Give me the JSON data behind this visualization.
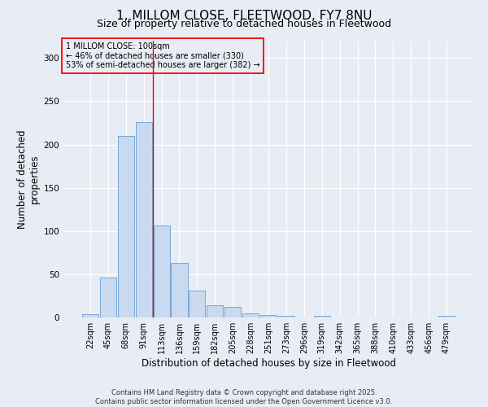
{
  "title": "1, MILLOM CLOSE, FLEETWOOD, FY7 8NU",
  "subtitle": "Size of property relative to detached houses in Fleetwood",
  "xlabel": "Distribution of detached houses by size in Fleetwood",
  "ylabel": "Number of detached properties",
  "bar_color": "#c8d9f0",
  "bar_edge_color": "#6a9fd0",
  "bin_labels": [
    "22sqm",
    "45sqm",
    "68sqm",
    "91sqm",
    "113sqm",
    "136sqm",
    "159sqm",
    "182sqm",
    "205sqm",
    "228sqm",
    "251sqm",
    "273sqm",
    "296sqm",
    "319sqm",
    "342sqm",
    "365sqm",
    "388sqm",
    "410sqm",
    "433sqm",
    "456sqm",
    "479sqm"
  ],
  "bar_values": [
    4,
    46,
    210,
    226,
    106,
    63,
    31,
    14,
    12,
    5,
    3,
    2,
    0,
    2,
    0,
    0,
    0,
    0,
    0,
    0,
    2
  ],
  "ylim": [
    0,
    320
  ],
  "yticks": [
    0,
    50,
    100,
    150,
    200,
    250,
    300
  ],
  "red_line_x": 3.5,
  "annotation_title": "1 MILLOM CLOSE: 100sqm",
  "annotation_line2": "← 46% of detached houses are smaller (330)",
  "annotation_line3": "53% of semi-detached houses are larger (382) →",
  "footer1": "Contains HM Land Registry data © Crown copyright and database right 2025.",
  "footer2": "Contains public sector information licensed under the Open Government Licence v3.0.",
  "background_color": "#e8edf5",
  "grid_color": "#ffffff",
  "title_fontsize": 11,
  "subtitle_fontsize": 9,
  "axis_label_fontsize": 8.5,
  "tick_fontsize": 7,
  "annotation_fontsize": 7,
  "footer_fontsize": 6
}
